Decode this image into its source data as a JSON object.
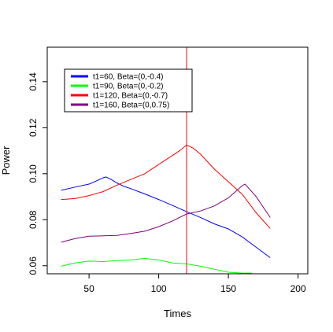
{
  "chart_data": {
    "type": "line",
    "title": "",
    "xlabel": "Times",
    "ylabel": "Power",
    "xlim": [
      20,
      207
    ],
    "ylim": [
      0.0565,
      0.155
    ],
    "x_ticks": [
      50,
      100,
      150,
      200
    ],
    "y_ticks": [
      0.06,
      0.08,
      0.1,
      0.12,
      0.14
    ],
    "x_tick_labels": [
      "50",
      "100",
      "150",
      "200"
    ],
    "y_tick_labels": [
      "0.06",
      "0.08",
      "0.10",
      "0.12",
      "0.14"
    ],
    "legend_position": "top-left",
    "vline": {
      "x": 120,
      "color": "#ff0000"
    },
    "series": [
      {
        "name": "t1=60, Beta=(0,-0.4)",
        "color": "#0000ff",
        "x": [
          30,
          40,
          50,
          55,
          60,
          62,
          65,
          70,
          75,
          80,
          90,
          100,
          110,
          120,
          130,
          140,
          150,
          160,
          170,
          180
        ],
        "y": [
          0.0928,
          0.0942,
          0.0955,
          0.0968,
          0.0982,
          0.0986,
          0.0978,
          0.096,
          0.0945,
          0.0935,
          0.0912,
          0.0888,
          0.0862,
          0.0835,
          0.081,
          0.0782,
          0.076,
          0.0725,
          0.068,
          0.0635
        ]
      },
      {
        "name": "t1=90, Beta=(0,-0.2)",
        "color": "#00ff00",
        "x": [
          30,
          40,
          50,
          60,
          70,
          80,
          90,
          100,
          110,
          120,
          130,
          140,
          150,
          160,
          167
        ],
        "y": [
          0.0598,
          0.0612,
          0.062,
          0.0618,
          0.0622,
          0.0625,
          0.0632,
          0.0625,
          0.0612,
          0.0608,
          0.0598,
          0.0585,
          0.0572,
          0.0568,
          0.0568
        ]
      },
      {
        "name": "t1=120, Beta=(0,-0.7)",
        "color": "#ff0000",
        "x": [
          30,
          40,
          50,
          60,
          70,
          80,
          90,
          100,
          110,
          115,
          120,
          125,
          130,
          140,
          150,
          160,
          170,
          180
        ],
        "y": [
          0.0888,
          0.0892,
          0.0905,
          0.0922,
          0.095,
          0.0975,
          0.1,
          0.104,
          0.108,
          0.11,
          0.1125,
          0.111,
          0.1085,
          0.102,
          0.0965,
          0.091,
          0.083,
          0.0762
        ]
      },
      {
        "name": "t1=160, Beta=(0,0.75)",
        "color": "#800080",
        "x": [
          30,
          40,
          50,
          60,
          70,
          80,
          90,
          100,
          110,
          120,
          130,
          140,
          150,
          160,
          162,
          170,
          180
        ],
        "y": [
          0.0702,
          0.0718,
          0.0728,
          0.073,
          0.0732,
          0.074,
          0.075,
          0.077,
          0.0795,
          0.0825,
          0.0838,
          0.086,
          0.0895,
          0.0948,
          0.0955,
          0.09,
          0.081
        ]
      }
    ]
  }
}
